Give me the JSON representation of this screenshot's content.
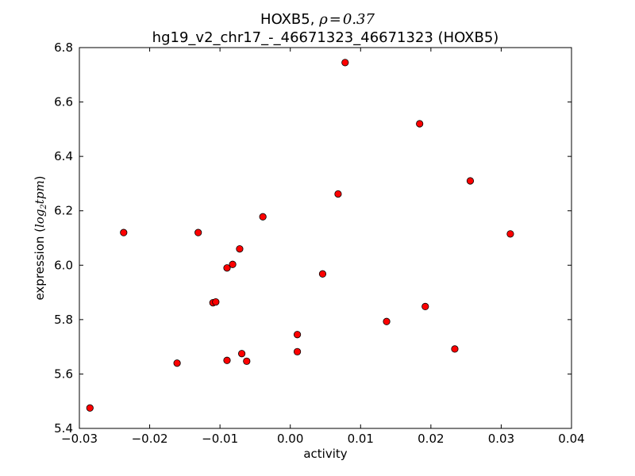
{
  "chart_data": {
    "type": "scatter",
    "title_gene": "HOXB5",
    "title_sep": ", ",
    "title_rho_symbol": "ρ",
    "title_rho_eq": "=",
    "title_rho_value": "0.37",
    "subtitle": "hg19_v2_chr17_-_46671323_46671323 (HOXB5)",
    "xlabel": "activity",
    "ylabel_text": "expression (",
    "ylabel_math_base": "log",
    "ylabel_math_sub": "2",
    "ylabel_math_rest": "tpm",
    "ylabel_close": ")",
    "xlim": [
      -0.03,
      0.04
    ],
    "ylim": [
      5.4,
      6.8
    ],
    "xticks": [
      -0.03,
      -0.02,
      -0.01,
      0.0,
      0.01,
      0.02,
      0.03,
      0.04
    ],
    "xtick_labels": [
      "−0.03",
      "−0.02",
      "−0.01",
      "0.00",
      "0.01",
      "0.02",
      "0.03",
      "0.04"
    ],
    "yticks": [
      5.4,
      5.6,
      5.8,
      6.0,
      6.2,
      6.4,
      6.6,
      6.8
    ],
    "ytick_labels": [
      "5.4",
      "5.6",
      "5.8",
      "6.0",
      "6.2",
      "6.4",
      "6.6",
      "6.8"
    ],
    "grid": false,
    "marker_color": "#ff0000",
    "marker_edge": "#000000",
    "points": [
      {
        "x": -0.0285,
        "y": 5.475
      },
      {
        "x": -0.0237,
        "y": 6.12
      },
      {
        "x": -0.0161,
        "y": 5.64
      },
      {
        "x": -0.0131,
        "y": 6.12
      },
      {
        "x": -0.011,
        "y": 5.862
      },
      {
        "x": -0.0106,
        "y": 5.865
      },
      {
        "x": -0.009,
        "y": 5.99
      },
      {
        "x": -0.009,
        "y": 5.65
      },
      {
        "x": -0.0082,
        "y": 6.003
      },
      {
        "x": -0.0072,
        "y": 6.06
      },
      {
        "x": -0.0069,
        "y": 5.675
      },
      {
        "x": -0.0062,
        "y": 5.647
      },
      {
        "x": -0.0039,
        "y": 6.178
      },
      {
        "x": 0.001,
        "y": 5.745
      },
      {
        "x": 0.001,
        "y": 5.682
      },
      {
        "x": 0.0046,
        "y": 5.968
      },
      {
        "x": 0.0068,
        "y": 6.262
      },
      {
        "x": 0.0078,
        "y": 6.745
      },
      {
        "x": 0.0137,
        "y": 5.793
      },
      {
        "x": 0.0184,
        "y": 6.52
      },
      {
        "x": 0.0192,
        "y": 5.848
      },
      {
        "x": 0.0234,
        "y": 5.692
      },
      {
        "x": 0.0256,
        "y": 6.31
      },
      {
        "x": 0.0313,
        "y": 6.115
      }
    ]
  }
}
